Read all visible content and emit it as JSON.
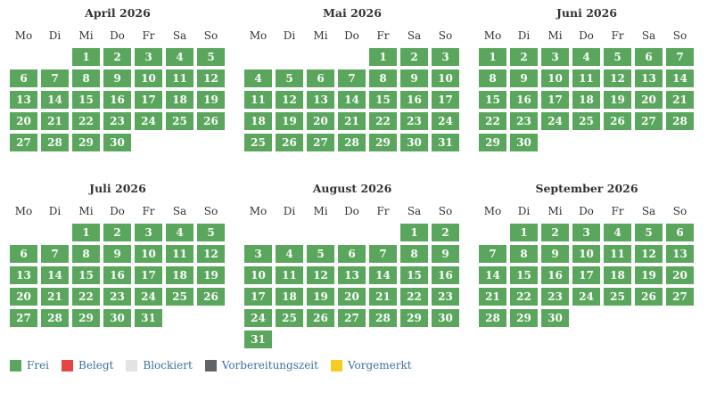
{
  "weekdays": [
    "Mo",
    "Di",
    "Mi",
    "Do",
    "Fr",
    "Sa",
    "So"
  ],
  "colors": {
    "frei": "#5aa65d",
    "text": "#ffffff"
  },
  "months": [
    {
      "title": "April 2026",
      "start_offset": 2,
      "days": 30
    },
    {
      "title": "Mai 2026",
      "start_offset": 4,
      "days": 31
    },
    {
      "title": "Juni 2026",
      "start_offset": 0,
      "days": 30
    },
    {
      "title": "Juli 2026",
      "start_offset": 2,
      "days": 31
    },
    {
      "title": "August 2026",
      "start_offset": 5,
      "days": 31
    },
    {
      "title": "September 2026",
      "start_offset": 1,
      "days": 30
    }
  ],
  "legend": [
    {
      "label": "Frei",
      "color": "#5aa65d"
    },
    {
      "label": "Belegt",
      "color": "#e64545"
    },
    {
      "label": "Blockiert",
      "color": "#e3e3e3"
    },
    {
      "label": "Vorbereitungszeit",
      "color": "#606468"
    },
    {
      "label": "Vorgemerkt",
      "color": "#f5cc1f"
    }
  ]
}
